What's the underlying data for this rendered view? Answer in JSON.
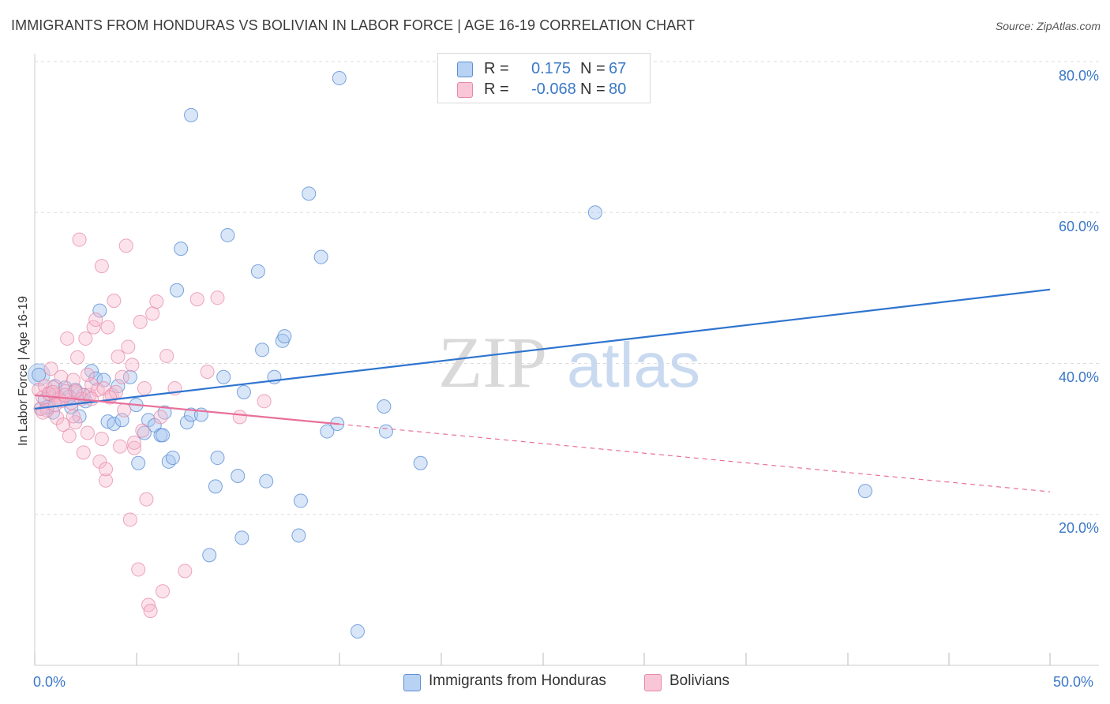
{
  "title": "IMMIGRANTS FROM HONDURAS VS BOLIVIAN IN LABOR FORCE | AGE 16-19 CORRELATION CHART",
  "source": "Source: ZipAtlas.com",
  "watermark": {
    "zip": "ZIP",
    "atlas": "atlas"
  },
  "legend": {
    "r_label": "R =",
    "n_label": "N =",
    "series": [
      {
        "r": "0.175",
        "n": "67"
      },
      {
        "r": "-0.068",
        "n": "80"
      }
    ]
  },
  "colors": {
    "blue_fill": "#a9c8f0",
    "blue_stroke": "#5b8fd6",
    "blue_line": "#2e74cf",
    "pink_fill": "#f7b8cd",
    "pink_stroke": "#e58aa8",
    "pink_line": "#e8709a",
    "grid": "#dddddd",
    "tick_text": "#3b78c8"
  },
  "chart_data": {
    "type": "scatter",
    "title": "IMMIGRANTS FROM HONDURAS VS BOLIVIAN IN LABOR FORCE | AGE 16-19 CORRELATION CHART",
    "xlabel": "",
    "ylabel": "In Labor Force | Age 16-19",
    "xlim": [
      0,
      50
    ],
    "ylim": [
      0,
      80
    ],
    "x_tick_labels": [
      "0.0%",
      "50.0%"
    ],
    "y_ticks": [
      20,
      40,
      60,
      80
    ],
    "y_tick_labels": [
      "20.0%",
      "40.0%",
      "60.0%",
      "80.0%"
    ],
    "grid": true,
    "series": [
      {
        "name": "Immigrants from Honduras",
        "color": "#a9c8f0",
        "trend": {
          "x": [
            0,
            50
          ],
          "y": [
            34.0,
            49.8
          ],
          "dashed_from": null
        },
        "points": [
          [
            0.3,
            34.0
          ],
          [
            0.5,
            35.2
          ],
          [
            0.7,
            36.0
          ],
          [
            0.9,
            33.5
          ],
          [
            1.0,
            37.0
          ],
          [
            1.2,
            35.5
          ],
          [
            1.5,
            36.8
          ],
          [
            1.8,
            34.2
          ],
          [
            2.0,
            36.5
          ],
          [
            2.2,
            33.0
          ],
          [
            2.5,
            35.0
          ],
          [
            2.8,
            39.0
          ],
          [
            3.0,
            38.0
          ],
          [
            3.2,
            47.0
          ],
          [
            3.4,
            37.8
          ],
          [
            3.6,
            32.3
          ],
          [
            3.9,
            32.0
          ],
          [
            4.1,
            37.0
          ],
          [
            4.3,
            32.5
          ],
          [
            4.7,
            38.2
          ],
          [
            5.0,
            34.5
          ],
          [
            5.1,
            26.8
          ],
          [
            5.4,
            30.8
          ],
          [
            5.6,
            32.5
          ],
          [
            5.9,
            31.8
          ],
          [
            6.2,
            30.5
          ],
          [
            6.3,
            30.5
          ],
          [
            6.4,
            33.5
          ],
          [
            6.6,
            27.0
          ],
          [
            6.8,
            27.5
          ],
          [
            7.0,
            49.7
          ],
          [
            7.2,
            55.2
          ],
          [
            7.5,
            32.2
          ],
          [
            7.7,
            33.2
          ],
          [
            7.7,
            72.9
          ],
          [
            8.2,
            33.2
          ],
          [
            8.6,
            14.6
          ],
          [
            8.9,
            23.7
          ],
          [
            9.0,
            27.5
          ],
          [
            9.3,
            38.2
          ],
          [
            9.5,
            57.0
          ],
          [
            10.0,
            25.1
          ],
          [
            10.2,
            16.9
          ],
          [
            10.3,
            36.2
          ],
          [
            11.0,
            52.2
          ],
          [
            11.2,
            41.8
          ],
          [
            11.4,
            24.4
          ],
          [
            11.8,
            38.2
          ],
          [
            12.2,
            43.0
          ],
          [
            12.3,
            43.6
          ],
          [
            13.0,
            17.2
          ],
          [
            13.1,
            21.8
          ],
          [
            13.5,
            62.5
          ],
          [
            14.1,
            54.1
          ],
          [
            14.4,
            31.0
          ],
          [
            14.9,
            32.0
          ],
          [
            15.9,
            4.5
          ],
          [
            17.2,
            34.3
          ],
          [
            17.3,
            31.0
          ],
          [
            19.0,
            26.8
          ],
          [
            27.6,
            60.0
          ],
          [
            40.9,
            23.1
          ],
          [
            15.0,
            77.8
          ],
          [
            2.4,
            35.8
          ],
          [
            1.7,
            35.6
          ],
          [
            0.6,
            34.2
          ],
          [
            0.2,
            38.5
          ]
        ]
      },
      {
        "name": "Bolivians",
        "color": "#f7b8cd",
        "trend": {
          "x": [
            0,
            50
          ],
          "y": [
            35.8,
            23.0
          ],
          "dashed_from": 15.0
        },
        "points": [
          [
            0.2,
            36.5
          ],
          [
            0.3,
            34.0
          ],
          [
            0.4,
            35.5
          ],
          [
            0.5,
            37.0
          ],
          [
            0.6,
            33.8
          ],
          [
            0.8,
            39.3
          ],
          [
            0.9,
            36.8
          ],
          [
            1.0,
            35.8
          ],
          [
            1.1,
            32.8
          ],
          [
            1.2,
            35.2
          ],
          [
            1.3,
            38.2
          ],
          [
            1.4,
            31.9
          ],
          [
            1.5,
            36.3
          ],
          [
            1.6,
            43.3
          ],
          [
            1.7,
            30.4
          ],
          [
            1.8,
            34.8
          ],
          [
            1.9,
            37.8
          ],
          [
            2.0,
            32.2
          ],
          [
            2.1,
            40.8
          ],
          [
            2.2,
            36.0
          ],
          [
            2.3,
            35.3
          ],
          [
            2.4,
            28.2
          ],
          [
            2.5,
            43.3
          ],
          [
            2.6,
            30.8
          ],
          [
            2.7,
            35.8
          ],
          [
            2.8,
            37.2
          ],
          [
            2.9,
            44.8
          ],
          [
            3.0,
            45.8
          ],
          [
            3.1,
            36.5
          ],
          [
            3.2,
            27.0
          ],
          [
            3.3,
            52.9
          ],
          [
            3.4,
            36.7
          ],
          [
            3.5,
            24.5
          ],
          [
            3.5,
            26.0
          ],
          [
            3.6,
            44.8
          ],
          [
            3.8,
            35.8
          ],
          [
            3.9,
            48.3
          ],
          [
            4.0,
            36.2
          ],
          [
            4.1,
            40.9
          ],
          [
            4.3,
            38.2
          ],
          [
            4.5,
            55.6
          ],
          [
            4.6,
            42.2
          ],
          [
            4.7,
            19.3
          ],
          [
            4.8,
            39.8
          ],
          [
            4.9,
            28.8
          ],
          [
            5.1,
            12.7
          ],
          [
            5.2,
            45.5
          ],
          [
            5.3,
            31.1
          ],
          [
            5.4,
            36.7
          ],
          [
            5.5,
            22.0
          ],
          [
            5.6,
            8.0
          ],
          [
            5.7,
            7.2
          ],
          [
            5.8,
            46.6
          ],
          [
            6.0,
            48.2
          ],
          [
            6.2,
            32.9
          ],
          [
            6.3,
            9.8
          ],
          [
            6.5,
            41.0
          ],
          [
            6.9,
            36.7
          ],
          [
            7.4,
            12.5
          ],
          [
            8.0,
            48.5
          ],
          [
            8.5,
            38.9
          ],
          [
            9.0,
            48.7
          ],
          [
            10.1,
            32.9
          ],
          [
            11.3,
            35.0
          ],
          [
            2.2,
            56.4
          ],
          [
            1.3,
            35.0
          ],
          [
            0.7,
            36.0
          ],
          [
            1.9,
            33.0
          ],
          [
            2.6,
            38.5
          ],
          [
            3.7,
            35.5
          ],
          [
            4.4,
            33.8
          ],
          [
            0.4,
            33.5
          ],
          [
            1.0,
            34.5
          ],
          [
            2.0,
            36.3
          ],
          [
            1.5,
            35.8
          ],
          [
            0.9,
            36.2
          ],
          [
            2.8,
            35.3
          ],
          [
            3.3,
            30.0
          ],
          [
            4.2,
            29.0
          ],
          [
            4.9,
            29.5
          ]
        ]
      }
    ]
  },
  "bottom_legend": [
    "Immigrants from Honduras",
    "Bolivians"
  ]
}
